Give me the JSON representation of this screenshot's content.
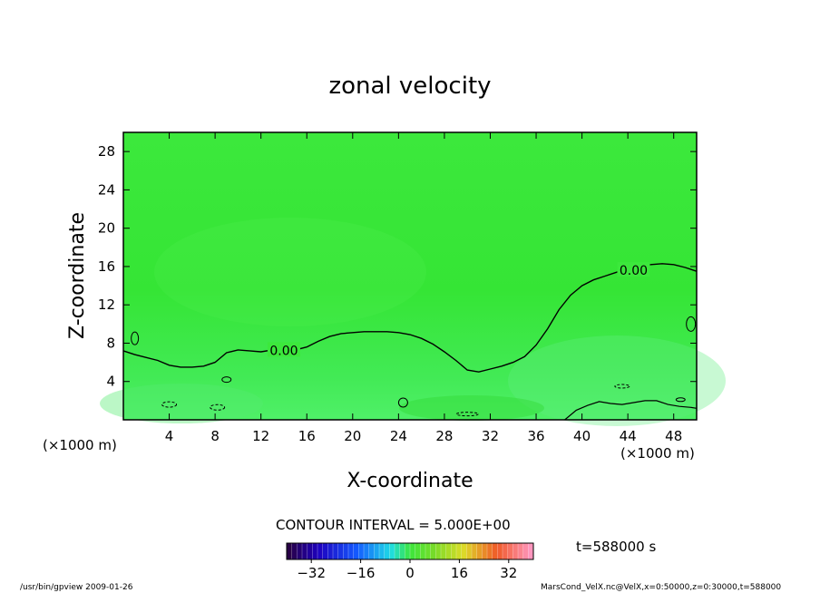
{
  "chart_data": {
    "type": "heatmap",
    "title": "zonal velocity",
    "xlabel": "X-coordinate",
    "ylabel": "Z-coordinate",
    "x_unit": "(×1000 m)",
    "y_unit": "(×1000 m)",
    "xlim": [
      0,
      50
    ],
    "ylim": [
      0,
      30
    ],
    "x_ticks": [
      4,
      8,
      12,
      16,
      20,
      24,
      28,
      32,
      36,
      40,
      44,
      48
    ],
    "y_ticks": [
      4,
      8,
      12,
      16,
      20,
      24,
      28
    ],
    "contour_interval_label": "CONTOUR INTERVAL = 5.000E+00",
    "time_label": "t=588000 s",
    "colorbar": {
      "min": -40,
      "max": 40,
      "ticks": [
        -32,
        -16,
        0,
        16,
        32
      ]
    },
    "zero_contour": {
      "label": "0.00",
      "x": [
        0,
        1,
        2,
        3,
        4,
        5,
        6,
        7,
        8,
        9,
        10,
        11,
        12,
        13,
        14,
        15,
        16,
        17,
        18,
        19,
        20,
        21,
        22,
        23,
        24,
        25,
        26,
        27,
        28,
        29,
        30,
        31,
        32,
        33,
        34,
        35,
        36,
        37,
        38,
        39,
        40,
        41,
        42,
        43,
        44,
        45,
        46,
        47,
        48,
        49,
        50
      ],
      "z": [
        7.2,
        6.8,
        6.5,
        6.2,
        5.7,
        5.5,
        5.5,
        5.6,
        6.0,
        7.0,
        7.3,
        7.2,
        7.1,
        7.3,
        7.2,
        7.3,
        7.6,
        8.2,
        8.7,
        9.0,
        9.1,
        9.2,
        9.2,
        9.2,
        9.1,
        8.9,
        8.5,
        7.9,
        7.1,
        6.2,
        5.2,
        5.0,
        5.3,
        5.6,
        6.0,
        6.6,
        7.8,
        9.5,
        11.5,
        13.0,
        14.0,
        14.6,
        15.0,
        15.4,
        15.8,
        16.0,
        16.2,
        16.3,
        16.2,
        15.9,
        15.5
      ]
    },
    "near_surface_contour": {
      "x": [
        38.5,
        39.5,
        40.5,
        41.5,
        42.5,
        43.5,
        44.5,
        45.5,
        46.5,
        47.5,
        48.5,
        49.5,
        50
      ],
      "z": [
        0,
        1.0,
        1.5,
        1.9,
        1.7,
        1.6,
        1.8,
        2.0,
        2.0,
        1.6,
        1.4,
        1.3,
        1.2
      ]
    },
    "footer_left": "/usr/bin/gpview  2009-01-26",
    "footer_right": "MarsCond_VelX.nc@VelX,x=0:50000,z=0:30000,t=588000"
  }
}
